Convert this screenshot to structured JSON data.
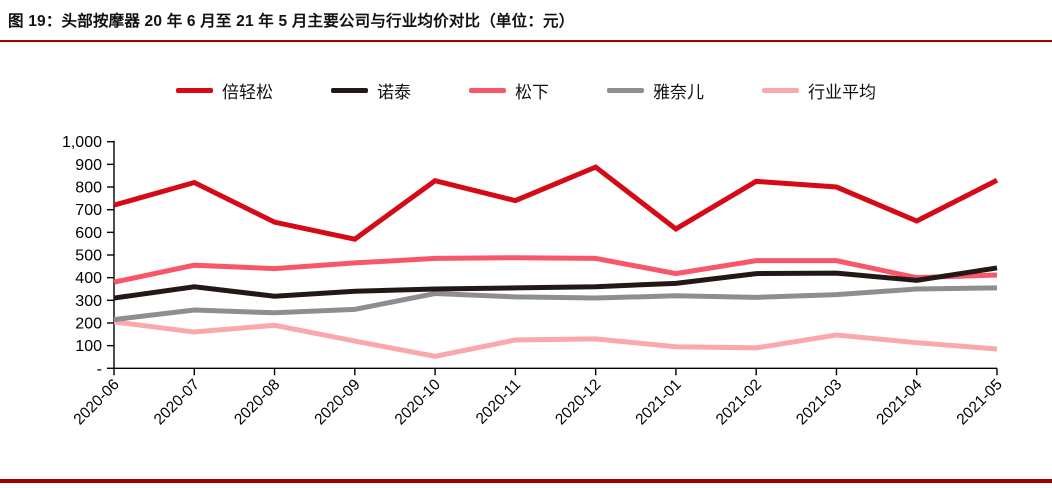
{
  "figure": {
    "title": "图 19：头部按摩器 20 年 6 月至 21 年 5 月主要公司与行业均价对比（单位：元）",
    "rule_color": "#a40000"
  },
  "chart_data": {
    "type": "line",
    "title": "头部按摩器 20 年 6 月至 21 年 5 月主要公司与行业均价对比",
    "unit": "元",
    "categories": [
      "2020-06",
      "2020-07",
      "2020-08",
      "2020-09",
      "2020-10",
      "2020-11",
      "2020-12",
      "2021-01",
      "2021-02",
      "2021-03",
      "2021-04",
      "2021-05"
    ],
    "series": [
      {
        "name": "倍轻松",
        "color": "#d60a16",
        "values": [
          720,
          820,
          645,
          570,
          828,
          740,
          888,
          615,
          825,
          800,
          650,
          830
        ]
      },
      {
        "name": "诺泰",
        "color": "#231815",
        "values": [
          310,
          360,
          318,
          340,
          350,
          355,
          360,
          375,
          418,
          420,
          388,
          443
        ]
      },
      {
        "name": "松下",
        "color": "#f8566b",
        "values": [
          380,
          455,
          440,
          465,
          485,
          488,
          485,
          418,
          475,
          475,
          400,
          412
        ]
      },
      {
        "name": "雅奈儿",
        "color": "#8e8e8e",
        "values": [
          215,
          257,
          245,
          260,
          330,
          315,
          310,
          320,
          313,
          325,
          350,
          355
        ]
      },
      {
        "name": "行业平均",
        "color": "#f9a8ac",
        "values": [
          205,
          160,
          190,
          120,
          53,
          125,
          130,
          95,
          90,
          147,
          113,
          85
        ]
      }
    ],
    "ylim": [
      0,
      1000
    ],
    "ytick_step": 100,
    "ytick_labels": [
      "-",
      "100",
      "200",
      "300",
      "400",
      "500",
      "600",
      "700",
      "800",
      "900",
      "1,000"
    ],
    "xlabel": "",
    "ylabel": "",
    "grid": false,
    "legend_position": "top",
    "axis_color": "#000000"
  }
}
